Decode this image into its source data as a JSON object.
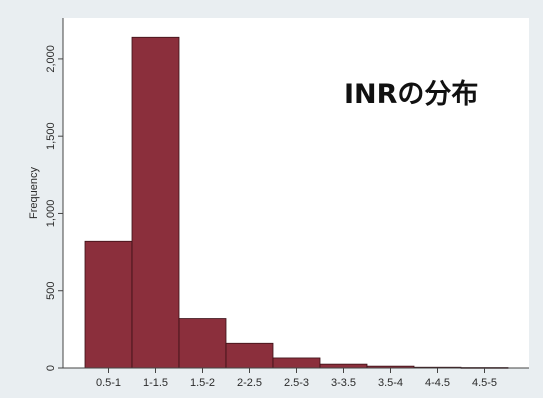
{
  "chart_data": {
    "type": "bar",
    "title": "INRの分布",
    "xlabel": "",
    "ylabel": "Frequency",
    "categories": [
      "0.5-1",
      "1-1.5",
      "1.5-2",
      "2-2.5",
      "2.5-3",
      "3-3.5",
      "3.5-4",
      "4-4.5",
      "4.5-5"
    ],
    "values": [
      820,
      2140,
      320,
      160,
      65,
      25,
      12,
      5,
      3
    ],
    "ylim": [
      0,
      2200
    ],
    "yticks": [
      0,
      500,
      1000,
      1500,
      2000
    ],
    "ytick_labels": [
      "0",
      "500",
      "1,000",
      "1,500",
      "2,000"
    ],
    "grid": false,
    "colors": {
      "bar": "#8b2f3c",
      "bar_edge": "#3a1016",
      "plot_bg": "#ffffff",
      "outer_bg": "#e9eef1",
      "axis": "#444444"
    }
  }
}
